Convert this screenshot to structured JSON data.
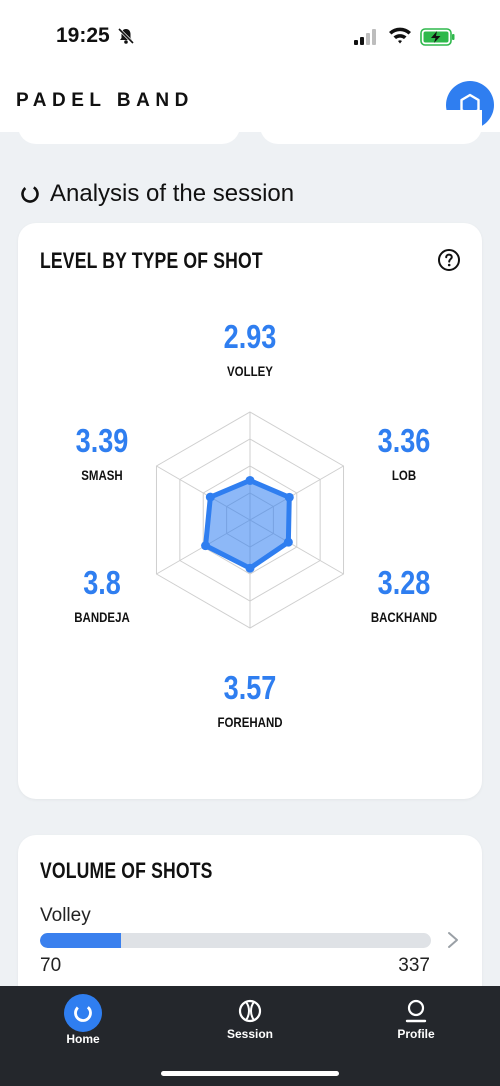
{
  "status_bar": {
    "time": "19:25"
  },
  "header": {
    "brand": "PADEL BAND",
    "action_icon": "hexagon-icon"
  },
  "section": {
    "title": "Analysis of the session",
    "icon": "loading-ring-icon"
  },
  "level_card": {
    "title": "LEVEL BY TYPE OF SHOT",
    "help_icon": "question-circle-icon",
    "shots": [
      {
        "name": "VOLLEY",
        "value": "2.93"
      },
      {
        "name": "LOB",
        "value": "3.36"
      },
      {
        "name": "BACKHAND",
        "value": "3.28"
      },
      {
        "name": "FOREHAND",
        "value": "3.57"
      },
      {
        "name": "BANDEJA",
        "value": "3.8"
      },
      {
        "name": "SMASH",
        "value": "3.39"
      }
    ]
  },
  "chart_data": {
    "type": "radar",
    "categories": [
      "VOLLEY",
      "LOB",
      "BACKHAND",
      "FOREHAND",
      "BANDEJA",
      "SMASH"
    ],
    "values": [
      2.93,
      3.36,
      3.28,
      3.57,
      3.8,
      3.39
    ],
    "grid": true,
    "colors": {
      "fill": "#2f7ef0",
      "stroke": "#2f7ef0",
      "grid": "#cfcfcf"
    }
  },
  "volume_card": {
    "title": "VOLUME OF SHOTS",
    "items": [
      {
        "label": "Volley",
        "count": "70",
        "total": "337",
        "fraction": 0.208
      }
    ]
  },
  "tab_bar": {
    "tabs": [
      {
        "label": "Home",
        "icon": "refresh-icon",
        "active": true
      },
      {
        "label": "Session",
        "icon": "ball-icon",
        "active": false
      },
      {
        "label": "Profile",
        "icon": "user-icon",
        "active": false
      }
    ]
  },
  "colors": {
    "accent": "#2f7ef0",
    "tab_bar": "#24272c",
    "background": "#eef1f4"
  }
}
